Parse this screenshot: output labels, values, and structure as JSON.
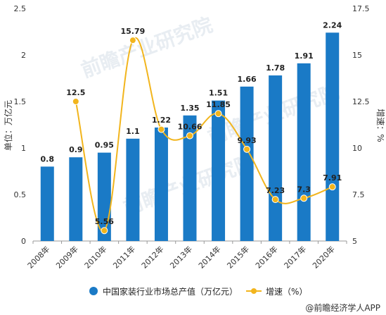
{
  "chart_data": {
    "type": "bar",
    "categories": [
      "2008年",
      "2009年",
      "2010年",
      "2011年",
      "2012年",
      "2013年",
      "2014年",
      "2015年",
      "2016年",
      "2017年",
      "2020年"
    ],
    "series": [
      {
        "name": "中国家装行业市场总产值（万亿元）",
        "type": "bar",
        "axis": "left",
        "color": "#1a7ac6",
        "values": [
          0.8,
          0.9,
          0.95,
          1.1,
          1.22,
          1.35,
          1.51,
          1.66,
          1.78,
          1.91,
          2.24
        ],
        "labels": [
          "0.8",
          "0.9",
          "0.95",
          "1.1",
          "1.22",
          "1.35",
          "1.51",
          "1.66",
          "1.78",
          "1.91",
          "2.24"
        ]
      },
      {
        "name": "增速（%）",
        "type": "line",
        "axis": "right",
        "color": "#f2b51d",
        "values": [
          null,
          12.5,
          5.56,
          15.79,
          11.0,
          10.66,
          11.85,
          9.93,
          7.23,
          7.3,
          7.91
        ],
        "labels": [
          "",
          "12.5",
          "5.56",
          "15.79",
          "",
          "10.66",
          "11.85",
          "9.93",
          "7.23",
          "7.3",
          "7.91"
        ]
      }
    ],
    "ylabel": "单位：万亿元",
    "ylabel_right": "增速：%",
    "ylim": [
      0,
      2.5
    ],
    "ylim_right": [
      5,
      17.5
    ],
    "yticks": [
      "0",
      "0.5",
      "1",
      "1.5",
      "2",
      "2.5"
    ],
    "yticks_right": [
      "5",
      "7.5",
      "10",
      "12.5",
      "15",
      "17.5"
    ],
    "grid": false,
    "legend_position": "bottom"
  },
  "credit": "@前瞻经济学人APP",
  "watermark": "前瞻产业研究院"
}
